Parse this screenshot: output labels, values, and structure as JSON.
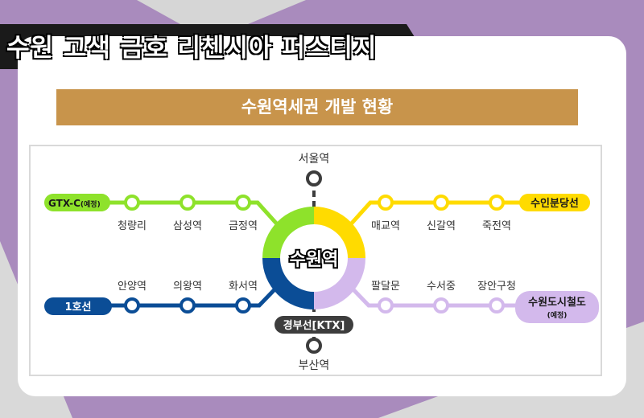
{
  "title": "수원 고색 금호 리첸시아 퍼스티지",
  "section_title": "수원역세권 개발 현황",
  "center_station": "수원역",
  "colors": {
    "background_purple": "#a98bbd",
    "header_gold": "#c8944b",
    "gtx_green": "#8ee22b",
    "suin_yellow": "#ffdb00",
    "line1_blue": "#0b4d96",
    "suwon_tram_lavender": "#d3b9ec",
    "gyeongbu_dark": "#3d3d3d"
  },
  "lines": {
    "gtx_c": {
      "label": "GTX-C",
      "note": "(예정)",
      "stations": [
        "청량리",
        "삼성역",
        "금정역"
      ]
    },
    "suin_bundang": {
      "label": "수인분당선",
      "stations": [
        "매교역",
        "신갈역",
        "죽전역"
      ]
    },
    "line1": {
      "label": "1호선",
      "stations": [
        "안양역",
        "의왕역",
        "화서역"
      ]
    },
    "suwon_tram": {
      "label": "수원도시철도",
      "note": "(예정)",
      "stations": [
        "팔달문",
        "수서중",
        "장안구청"
      ]
    },
    "gyeongbu": {
      "label": "경부선[KTX]",
      "north_station": "서울역",
      "south_station": "부산역"
    }
  }
}
